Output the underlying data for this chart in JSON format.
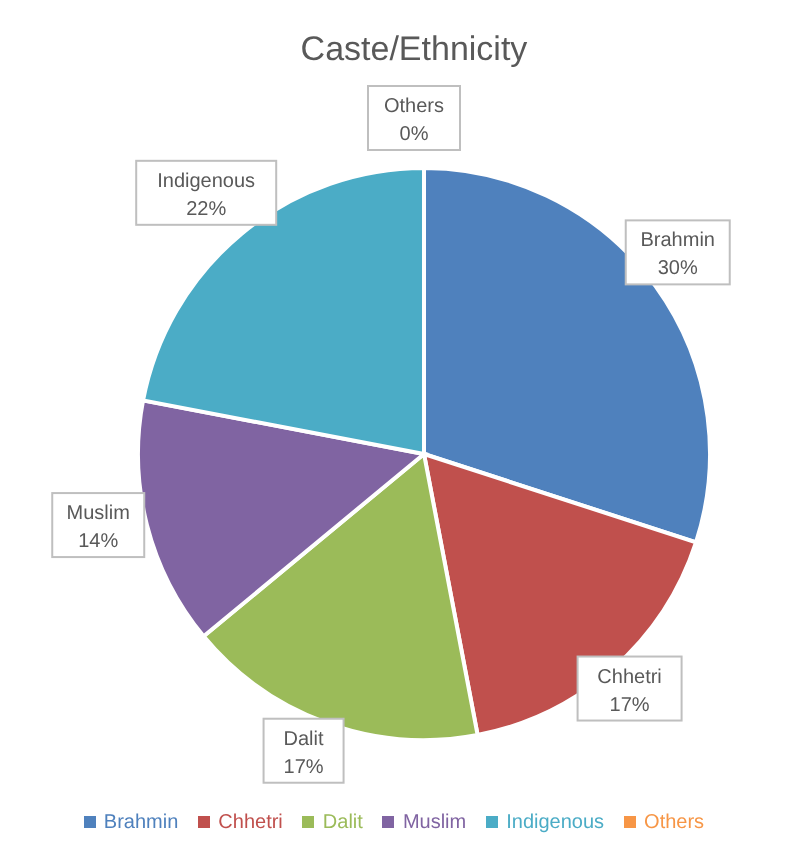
{
  "chart_data": {
    "type": "pie",
    "title": "Caste/Ethnicity",
    "categories": [
      "Brahmin",
      "Chhetri",
      "Dalit",
      "Muslim",
      "Indigenous",
      "Others"
    ],
    "values": [
      30,
      17,
      17,
      14,
      22,
      0
    ],
    "value_labels": [
      "30%",
      "17%",
      "17%",
      "14%",
      "22%",
      "0%"
    ],
    "colors": [
      "#4f81bd",
      "#c0504d",
      "#9bbb59",
      "#8064a2",
      "#4bacc6",
      "#f79646"
    ],
    "legend": "bottom"
  }
}
